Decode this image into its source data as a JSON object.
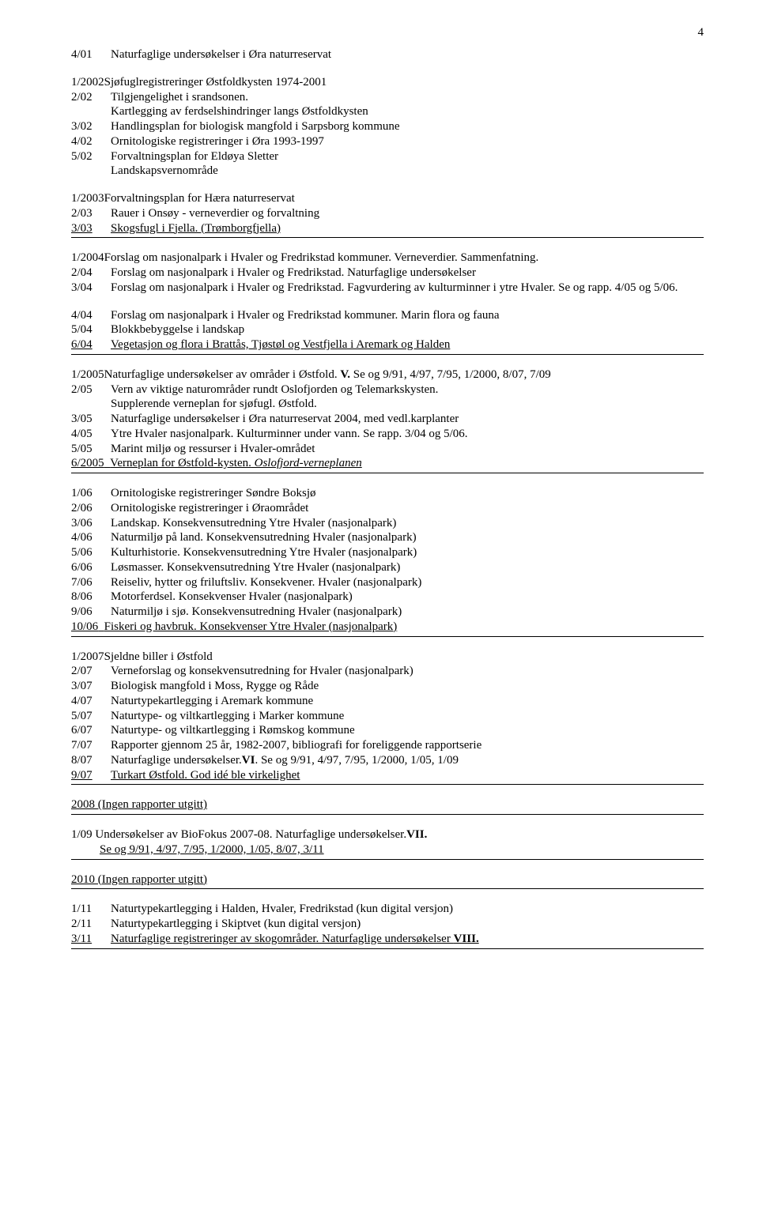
{
  "pageNumber": "4",
  "b1": [
    {
      "code": "4/01",
      "text": "Naturfaglige undersøkelser i Øra naturreservat"
    }
  ],
  "b2": [
    {
      "code": "1/2002",
      "text": "Sjøfuglregistreringer Østfoldkysten 1974-2001",
      "nogap": true
    },
    {
      "code": "2/02",
      "text": "Tilgjengelighet i srandsonen."
    },
    {
      "code": "",
      "text": "Kartlegging av ferdselshindringer langs Østfoldkysten",
      "indent": true
    },
    {
      "code": "3/02",
      "text": "Handlingsplan for biologisk mangfold i Sarpsborg kommune"
    },
    {
      "code": "4/02",
      "text": "Ornitologiske registreringer i Øra 1993-1997"
    },
    {
      "code": "5/02",
      "text": "Forvaltningsplan for Eldøya Sletter"
    },
    {
      "code": "",
      "text": "Landskapsvernområde",
      "indent": true
    }
  ],
  "b3": [
    {
      "code": "1/2003",
      "text": " Forvaltningsplan for Hæra naturreservat",
      "nogap": true
    },
    {
      "code": "2/03",
      "text": "Rauer i Onsøy - verneverdier og forvaltning"
    }
  ],
  "b3last": {
    "code": "3/03",
    "t1": "Skogsfugl i Fjella. (Trømborgfjella)"
  },
  "b4": [
    {
      "code": "1/2004",
      "text": " Forslag om nasjonalpark i Hvaler og Fredrikstad kommuner. Verneverdier. Sammenfatning.",
      "nogap": true
    },
    {
      "code": "2/04",
      "text": "Forslag om nasjonalpark i Hvaler og Fredrikstad. Naturfaglige undersøkelser"
    },
    {
      "code": "3/04",
      "text": "Forslag om nasjonalpark i Hvaler og Fredrikstad. Fagvurdering av kulturminner i ytre Hvaler. Se og rapp. 4/05 og 5/06."
    }
  ],
  "b5": [
    {
      "code": "4/04",
      "text": " Forslag om nasjonalpark i Hvaler og Fredrikstad kommuner. Marin flora og fauna"
    },
    {
      "code": "5/04",
      "text": "Blokkbebyggelse i landskap"
    }
  ],
  "b5last": {
    "code": "6/04",
    "t1": "Vegetasjon og flora i Brattås, Tjøstøl og Vestfjella i Aremark og Halden"
  },
  "b6top": {
    "code": "1/2005",
    "pre": " Naturfaglige undersøkelser av områder i Østfold. ",
    "bold": "V.",
    "post": " Se og  9/91, 4/97, 7/95, 1/2000, 8/07, 7/09"
  },
  "b6": [
    {
      "code": "2/05",
      "text": "Vern av viktige naturområder rundt Oslofjorden og Telemarkskysten."
    },
    {
      "code": "",
      "text": "Supplerende verneplan for sjøfugl. Østfold.",
      "indent": true
    },
    {
      "code": "3/05",
      "text": "Naturfaglige undersøkelser i Øra naturreservat 2004, med vedl.karplanter"
    },
    {
      "code": "4/05",
      "text": "Ytre Hvaler nasjonalpark. Kulturminner under vann. Se rapp. 3/04 og 5/06."
    },
    {
      "code": "5/05",
      "text": "Marint miljø og ressurser i Hvaler-området"
    }
  ],
  "b6last": {
    "code": "6/2005",
    "t1": "Verneplan for Østfold-kysten.",
    "italic": " Oslofjord-verneplanen"
  },
  "b7": [
    {
      "code": "1/06",
      "text": "Ornitologiske registreringer Søndre Boksjø"
    },
    {
      "code": "2/06",
      "text": "Ornitologiske registreringer i Øraområdet"
    },
    {
      "code": "3/06",
      "text": "Landskap. Konsekvensutredning Ytre Hvaler (nasjonalpark)"
    },
    {
      "code": "4/06",
      "text": "Naturmiljø på land. Konsekvensutredning Hvaler (nasjonalpark)"
    },
    {
      "code": "5/06",
      "text": "Kulturhistorie. Konsekvensutredning Ytre Hvaler (nasjonalpark)"
    },
    {
      "code": "6/06",
      "text": "Løsmasser. Konsekvensutredning Ytre Hvaler (nasjonalpark)"
    },
    {
      "code": "7/06",
      "text": "Reiseliv, hytter og friluftsliv. Konsekvener. Hvaler (nasjonalpark)"
    },
    {
      "code": "8/06",
      "text": "Motorferdsel. Konsekvenser Hvaler (nasjonalpark)"
    },
    {
      "code": "9/06",
      "text": "Naturmiljø i sjø. Konsekvensutredning Hvaler (nasjonalpark)"
    }
  ],
  "b7last": {
    "code": "10/06",
    "t1": "Fiskeri og havbruk. Konsekvenser Ytre Hvaler (nasjonalpark)"
  },
  "b8": [
    {
      "code": "1/2007",
      "text": " Sjeldne biller i Østfold",
      "nogap": true
    },
    {
      "code": "2/07",
      "text": "Verneforslag og konsekvensutredning for  Hvaler (nasjonalpark)"
    },
    {
      "code": "3/07",
      "text": "Biologisk mangfold i Moss, Rygge og Råde"
    },
    {
      "code": "4/07",
      "text": "Naturtypekartlegging i Aremark kommune"
    },
    {
      "code": "5/07",
      "text": "Naturtype- og viltkartlegging i Marker kommune"
    },
    {
      "code": "6/07",
      "text": "Naturtype- og viltkartlegging i Rømskog kommune"
    },
    {
      "code": "7/07",
      "text": "Rapporter gjennom 25 år, 1982-2007, bibliografi for foreliggende rapportserie"
    }
  ],
  "b8row": {
    "code": "8/07",
    "pre": "Naturfaglige undersøkelser.",
    "bold": "VI",
    "post": ". Se og  9/91, 4/97, 7/95, 1/2000, 1/05, 1/09"
  },
  "b8last": {
    "code": "9/07",
    "t1": "Turkart Østfold. God idé ble virkelighet"
  },
  "b9heading": "2008   (Ingen rapporter utgitt)",
  "b10top": {
    "pre": "1/09 Undersøkelser av BioFokus 2007-08. Naturfaglige undersøkelser.",
    "bold": "VII."
  },
  "b10line2": "Se og  9/91, 4/97, 7/95, 1/2000, 1/05, 8/07, 3/11",
  "b11heading": "2010   (Ingen rapporter utgitt)",
  "b12": [
    {
      "code": "1/11",
      "text": "Naturtypekartlegging i Halden, Hvaler, Fredrikstad (kun digital versjon)"
    },
    {
      "code": "2/11",
      "text": "Naturtypekartlegging i Skiptvet (kun digital versjon)"
    }
  ],
  "b12last": {
    "code": "3/11",
    "pre": "Naturfaglige registreringer av skogområder. Naturfaglige undersøkelser ",
    "bold": "VIII."
  }
}
